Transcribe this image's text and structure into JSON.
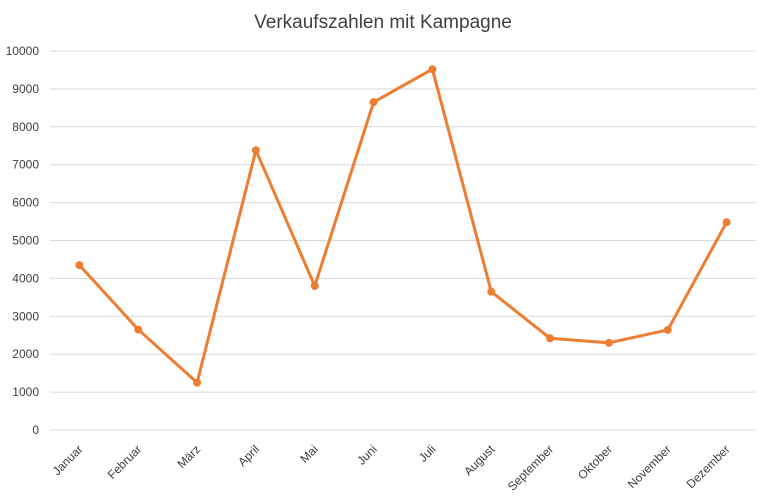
{
  "chart_data": {
    "type": "line",
    "title": "Verkaufszahlen mit Kampagne",
    "xlabel": "",
    "ylabel": "",
    "categories": [
      "Januar",
      "Februar",
      "März",
      "April",
      "Mai",
      "Juni",
      "Juli",
      "August",
      "September",
      "Oktober",
      "November",
      "Dezember"
    ],
    "series": [
      {
        "values": [
          4350,
          2650,
          1250,
          7380,
          3800,
          8650,
          9520,
          3650,
          2420,
          2300,
          2640,
          5480
        ],
        "color": "#ed7d31"
      }
    ],
    "ylim": [
      0,
      10000
    ],
    "yticks": [
      "0",
      "1000",
      "2000",
      "3000",
      "4000",
      "5000",
      "6000",
      "7000",
      "8000",
      "9000",
      "10000"
    ],
    "grid": true,
    "legend": "none"
  }
}
